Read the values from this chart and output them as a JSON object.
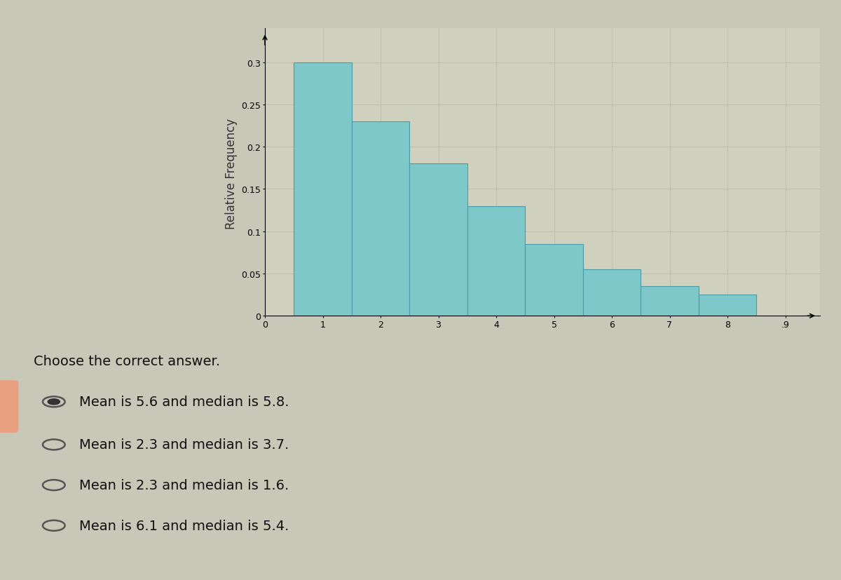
{
  "bar_values": [
    0.3,
    0.23,
    0.18,
    0.13,
    0.085,
    0.055,
    0.035,
    0.025
  ],
  "bar_positions": [
    1,
    2,
    3,
    4,
    5,
    6,
    7,
    8
  ],
  "bar_color": "#7EC8CA",
  "bar_edge_color": "#4A9BA8",
  "bar_width": 1.0,
  "ylabel": "Relative Frequency",
  "ytick_labels": [
    "0",
    "0.05",
    "0.1",
    "0.15",
    "0.2",
    "0.25",
    "0.3"
  ],
  "ytick_values": [
    0.0,
    0.05,
    0.1,
    0.15,
    0.2,
    0.25,
    0.3
  ],
  "xtick_labels": [
    "0",
    "1",
    "2",
    "3",
    "4",
    "5",
    "6",
    "7",
    "8",
    ".9"
  ],
  "xtick_values": [
    0,
    1,
    2,
    3,
    4,
    5,
    6,
    7,
    8,
    9
  ],
  "xlim": [
    0,
    9.6
  ],
  "ylim": [
    0,
    0.34
  ],
  "page_bg_color": "#C8C8B8",
  "chart_area_bg": "#D0D0BE",
  "answer_box_bg": "#D4D4C4",
  "answer_box_border": "#AAAAAA",
  "choose_text": "Choose the correct answer.",
  "answers": [
    "Mean is 5.6 and median is 5.8.",
    "Mean is 2.3 and median is 3.7.",
    "Mean is 2.3 and median is 1.6.",
    "Mean is 6.1 and median is 5.4."
  ],
  "selected_answer": 0,
  "grid_color": "#BBBBAA",
  "tick_fontsize": 9,
  "ylabel_fontsize": 12,
  "answer_fontsize": 14,
  "choose_fontsize": 14,
  "salmon_color": "#E8A080"
}
